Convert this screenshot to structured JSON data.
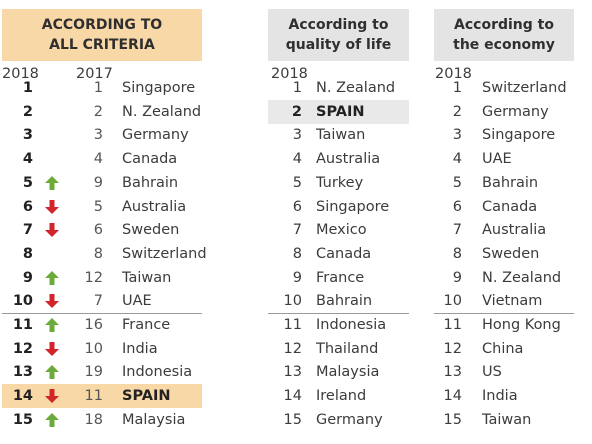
{
  "headers": {
    "overall": [
      "ACCORDING TO",
      "ALL CRITERIA"
    ],
    "quality_of_life": [
      "According to",
      "quality of life"
    ],
    "economy": [
      "According to",
      "the economy"
    ]
  },
  "year_labels": {
    "overall_2018": "2018",
    "overall_2017": "2017",
    "quality_of_life": "2018",
    "economy": "2018"
  },
  "colors": {
    "up": "#6aab3a",
    "down": "#d1252b",
    "highlight_overall": "#f9d8a8",
    "highlight_qol": "#e9e9e9"
  },
  "overall": [
    {
      "rank": "1",
      "prev": "1",
      "name": "Singapore",
      "trend": "none"
    },
    {
      "rank": "2",
      "prev": "2",
      "name": "N. Zealand",
      "trend": "none"
    },
    {
      "rank": "3",
      "prev": "3",
      "name": "Germany",
      "trend": "none"
    },
    {
      "rank": "4",
      "prev": "4",
      "name": "Canada",
      "trend": "none"
    },
    {
      "rank": "5",
      "prev": "9",
      "name": "Bahrain",
      "trend": "up"
    },
    {
      "rank": "6",
      "prev": "5",
      "name": "Australia",
      "trend": "down"
    },
    {
      "rank": "7",
      "prev": "6",
      "name": "Sweden",
      "trend": "down"
    },
    {
      "rank": "8",
      "prev": "8",
      "name": "Switzerland",
      "trend": "none"
    },
    {
      "rank": "9",
      "prev": "12",
      "name": "Taiwan",
      "trend": "up"
    },
    {
      "rank": "10",
      "prev": "7",
      "name": "UAE",
      "trend": "down"
    },
    {
      "rank": "11",
      "prev": "16",
      "name": "France",
      "trend": "up"
    },
    {
      "rank": "12",
      "prev": "10",
      "name": "India",
      "trend": "down"
    },
    {
      "rank": "13",
      "prev": "19",
      "name": "Indonesia",
      "trend": "up"
    },
    {
      "rank": "14",
      "prev": "11",
      "name": "SPAIN",
      "trend": "down",
      "highlight": true
    },
    {
      "rank": "15",
      "prev": "18",
      "name": "Malaysia",
      "trend": "up"
    }
  ],
  "quality_of_life": [
    {
      "rank": "1",
      "name": "N. Zealand"
    },
    {
      "rank": "2",
      "name": "SPAIN",
      "highlight": true
    },
    {
      "rank": "3",
      "name": "Taiwan"
    },
    {
      "rank": "4",
      "name": "Australia"
    },
    {
      "rank": "5",
      "name": "Turkey"
    },
    {
      "rank": "6",
      "name": "Singapore"
    },
    {
      "rank": "7",
      "name": "Mexico"
    },
    {
      "rank": "8",
      "name": "Canada"
    },
    {
      "rank": "9",
      "name": "France"
    },
    {
      "rank": "10",
      "name": "Bahrain"
    },
    {
      "rank": "11",
      "name": "Indonesia"
    },
    {
      "rank": "12",
      "name": "Thailand"
    },
    {
      "rank": "13",
      "name": "Malaysia"
    },
    {
      "rank": "14",
      "name": "Ireland"
    },
    {
      "rank": "15",
      "name": "Germany"
    }
  ],
  "economy": [
    {
      "rank": "1",
      "name": "Switzerland"
    },
    {
      "rank": "2",
      "name": "Germany"
    },
    {
      "rank": "3",
      "name": "Singapore"
    },
    {
      "rank": "4",
      "name": "UAE"
    },
    {
      "rank": "5",
      "name": "Bahrain"
    },
    {
      "rank": "6",
      "name": "Canada"
    },
    {
      "rank": "7",
      "name": "Australia"
    },
    {
      "rank": "8",
      "name": "Sweden"
    },
    {
      "rank": "9",
      "name": "N. Zealand"
    },
    {
      "rank": "10",
      "name": "Vietnam"
    },
    {
      "rank": "11",
      "name": "Hong Kong"
    },
    {
      "rank": "12",
      "name": "China"
    },
    {
      "rank": "13",
      "name": "US"
    },
    {
      "rank": "14",
      "name": "India"
    },
    {
      "rank": "15",
      "name": "Taiwan"
    }
  ]
}
